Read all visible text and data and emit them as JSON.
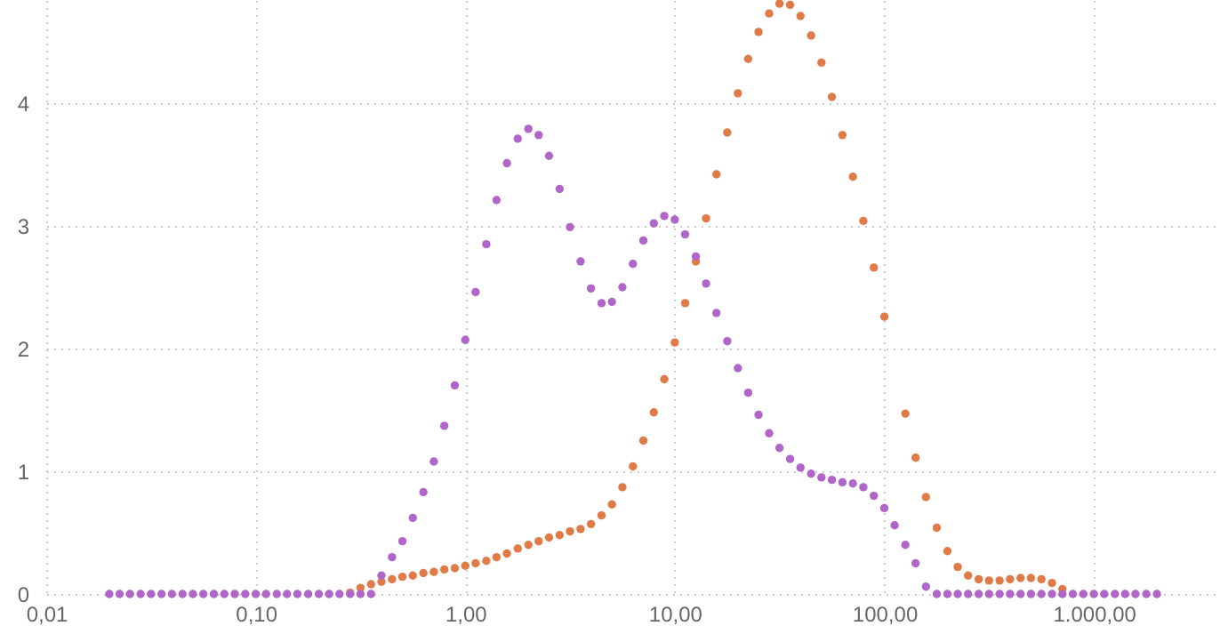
{
  "chart_data": {
    "type": "scatter",
    "log": "x",
    "grid": true,
    "marker": "circle",
    "xlim": [
      0.01,
      4000
    ],
    "ylim": [
      0,
      4.84
    ],
    "xticks": [
      {
        "value": 0.01,
        "label": "0,01"
      },
      {
        "value": 0.1,
        "label": "0,10"
      },
      {
        "value": 1,
        "label": "1,00"
      },
      {
        "value": 10,
        "label": "10,00"
      },
      {
        "value": 100,
        "label": "100,00"
      },
      {
        "value": 1000,
        "label": "1.000,00"
      }
    ],
    "yticks": [
      0,
      1,
      2,
      3,
      4
    ],
    "x": [
      0.02,
      0.0224,
      0.0251,
      0.0282,
      0.0316,
      0.0355,
      0.0398,
      0.0447,
      0.0501,
      0.0562,
      0.0631,
      0.0708,
      0.0794,
      0.0891,
      0.1,
      0.112,
      0.126,
      0.141,
      0.158,
      0.178,
      0.2,
      0.224,
      0.251,
      0.282,
      0.316,
      0.355,
      0.398,
      0.447,
      0.501,
      0.562,
      0.631,
      0.708,
      0.794,
      0.891,
      1.0,
      1.12,
      1.26,
      1.41,
      1.58,
      1.78,
      2.0,
      2.24,
      2.51,
      2.82,
      3.16,
      3.55,
      3.98,
      4.47,
      5.01,
      5.62,
      6.31,
      7.08,
      7.94,
      8.91,
      10.0,
      11.2,
      12.6,
      14.1,
      15.8,
      17.8,
      20.0,
      22.4,
      25.1,
      28.2,
      31.6,
      35.5,
      39.8,
      44.7,
      50.1,
      56.2,
      63.1,
      70.8,
      79.4,
      89.1,
      100,
      112,
      126,
      141,
      158,
      178,
      200,
      224,
      251,
      282,
      316,
      355,
      398,
      447,
      501,
      562,
      631,
      708,
      794,
      891,
      1000,
      1120,
      1260,
      1410,
      1580,
      1780,
      2000
    ],
    "series": [
      {
        "color": "#e07b48",
        "values": [
          null,
          null,
          null,
          null,
          null,
          null,
          null,
          null,
          null,
          null,
          null,
          null,
          null,
          null,
          null,
          null,
          null,
          null,
          null,
          null,
          null,
          null,
          null,
          0.01,
          0.05,
          0.08,
          0.1,
          0.12,
          0.14,
          0.15,
          0.17,
          0.18,
          0.2,
          0.21,
          0.23,
          0.25,
          0.27,
          0.3,
          0.33,
          0.37,
          0.4,
          0.43,
          0.46,
          0.48,
          0.51,
          0.53,
          0.57,
          0.64,
          0.73,
          0.87,
          1.04,
          1.25,
          1.48,
          1.75,
          2.05,
          2.37,
          2.71,
          3.06,
          3.42,
          3.76,
          4.08,
          4.36,
          4.58,
          4.73,
          4.81,
          4.8,
          4.71,
          4.55,
          4.33,
          4.05,
          3.74,
          3.4,
          3.04,
          2.66,
          2.26,
          null,
          1.47,
          1.11,
          0.79,
          0.54,
          0.35,
          0.22,
          0.15,
          0.12,
          0.11,
          0.11,
          0.12,
          0.13,
          0.13,
          0.12,
          0.09,
          0.04,
          null,
          null,
          null,
          null,
          null,
          null,
          null,
          null,
          null
        ]
      },
      {
        "color": "#b066c8",
        "values": [
          0,
          0,
          0,
          0,
          0,
          0,
          0,
          0,
          0,
          0,
          0,
          0,
          0,
          0,
          0,
          0,
          0,
          0,
          0,
          0,
          0,
          0,
          0,
          0,
          0,
          0,
          0.15,
          0.3,
          0.43,
          0.62,
          0.83,
          1.08,
          1.37,
          1.7,
          2.07,
          2.46,
          2.85,
          3.21,
          3.51,
          3.71,
          3.79,
          3.74,
          3.57,
          3.3,
          2.99,
          2.71,
          2.49,
          2.37,
          2.38,
          2.5,
          2.69,
          2.88,
          3.02,
          3.08,
          3.05,
          2.93,
          2.75,
          2.53,
          2.29,
          2.06,
          1.84,
          1.64,
          1.46,
          1.31,
          1.19,
          1.1,
          1.03,
          0.98,
          0.95,
          0.93,
          0.91,
          0.9,
          0.87,
          0.8,
          0.7,
          0.56,
          0.4,
          0.25,
          0.06,
          0,
          0,
          0,
          0,
          0,
          0,
          0,
          0,
          0,
          0,
          0,
          0,
          0,
          0,
          0,
          0,
          0,
          0,
          0,
          0,
          0,
          0
        ]
      }
    ]
  }
}
